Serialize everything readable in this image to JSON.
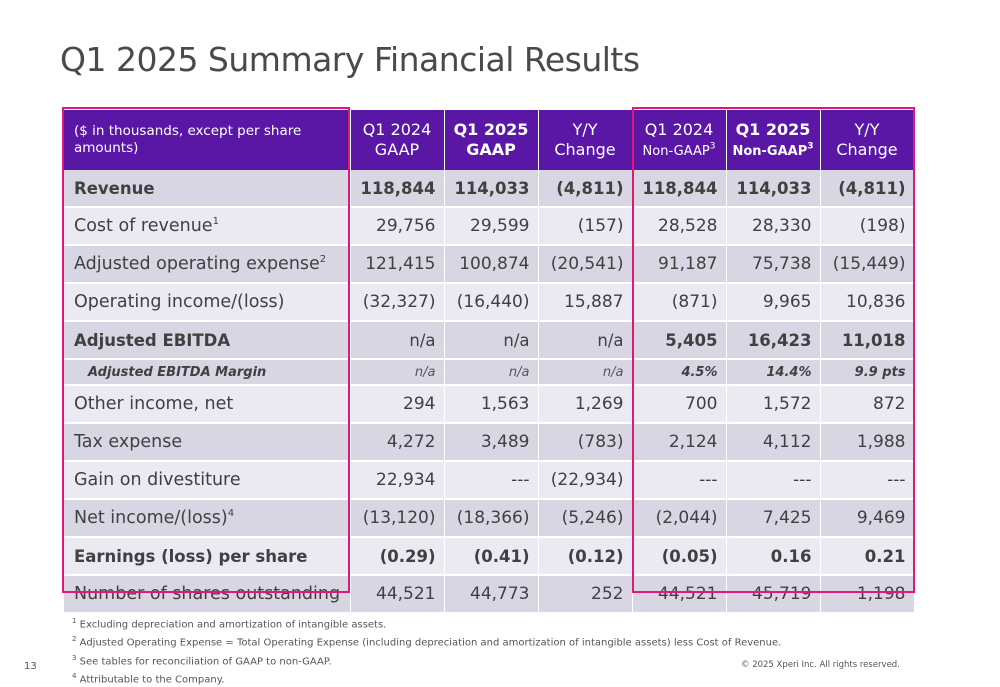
{
  "title": "Q1 2025 Summary Financial Results",
  "header": {
    "label": "($ in thousands, except per share amounts)",
    "col1_line1": "Q1 2024",
    "col1_line2": "GAAP",
    "col2_line1": "Q1 2025",
    "col2_line2": "GAAP",
    "col3_line1": "Y/Y",
    "col3_line2": "Change",
    "col4_line1": "Q1 2024",
    "col4_line2": "Non-GAAP",
    "col4_sup": "3",
    "col5_line1": "Q1 2025",
    "col5_line2": "Non-GAAP",
    "col5_sup": "3",
    "col6_line1": "Y/Y",
    "col6_line2": "Change"
  },
  "rows": [
    {
      "label": "Revenue",
      "sup": "",
      "values": [
        "118,844",
        "114,033",
        "(4,811)",
        "118,844",
        "114,033",
        "(4,811)"
      ]
    },
    {
      "label": "Cost of revenue",
      "sup": "1",
      "values": [
        "29,756",
        "29,599",
        "(157)",
        "28,528",
        "28,330",
        "(198)"
      ]
    },
    {
      "label": "Adjusted operating expense",
      "sup": "2",
      "values": [
        "121,415",
        "100,874",
        "(20,541)",
        "91,187",
        "75,738",
        "(15,449)"
      ]
    },
    {
      "label": "Operating income/(loss)",
      "sup": "",
      "values": [
        "(32,327)",
        "(16,440)",
        "15,887",
        "(871)",
        "9,965",
        "10,836"
      ]
    },
    {
      "label": "Adjusted EBITDA",
      "sup": "",
      "values": [
        "n/a",
        "n/a",
        "n/a",
        "5,405",
        "16,423",
        "11,018"
      ]
    },
    {
      "label": "Adjusted EBITDA Margin",
      "sup": "",
      "values": [
        "n/a",
        "n/a",
        "n/a",
        "4.5%",
        "14.4%",
        "9.9 pts"
      ]
    },
    {
      "label": "Other income, net",
      "sup": "",
      "values": [
        "294",
        "1,563",
        "1,269",
        "700",
        "1,572",
        "872"
      ]
    },
    {
      "label": "Tax expense",
      "sup": "",
      "values": [
        "4,272",
        "3,489",
        "(783)",
        "2,124",
        "4,112",
        "1,988"
      ]
    },
    {
      "label": "Gain on divestiture",
      "sup": "",
      "values": [
        "22,934",
        "---",
        "(22,934)",
        "---",
        "---",
        "---"
      ]
    },
    {
      "label": "Net income/(loss)",
      "sup": "4",
      "values": [
        "(13,120)",
        "(18,366)",
        "(5,246)",
        "(2,044)",
        "7,425",
        "9,469"
      ]
    },
    {
      "label": "Earnings (loss) per share",
      "sup": "",
      "values": [
        "(0.29)",
        "(0.41)",
        "(0.12)",
        "(0.05)",
        "0.16",
        "0.21"
      ]
    },
    {
      "label": "Number of shares outstanding",
      "sup": "",
      "values": [
        "44,521",
        "44,773",
        "252",
        "44,521",
        "45,719",
        "1,198"
      ]
    }
  ],
  "footnotes": [
    {
      "num": "1",
      "text": "Excluding depreciation and amortization of intangible assets."
    },
    {
      "num": "2",
      "text": "Adjusted Operating Expense = Total Operating Expense (including depreciation and amortization of intangible assets) less Cost of Revenue."
    },
    {
      "num": "3",
      "text": "See tables for reconciliation of GAAP to non-GAAP."
    },
    {
      "num": "4",
      "text": "Attributable to the Company."
    }
  ],
  "page_number": "13",
  "copyright": "© 2025 Xperi Inc. All rights reserved.",
  "colors": {
    "header_bg": "#5a17a6",
    "highlight_border": "#e0187a",
    "row_dark": "#d9d6e4",
    "row_light": "#ebe9f1"
  }
}
